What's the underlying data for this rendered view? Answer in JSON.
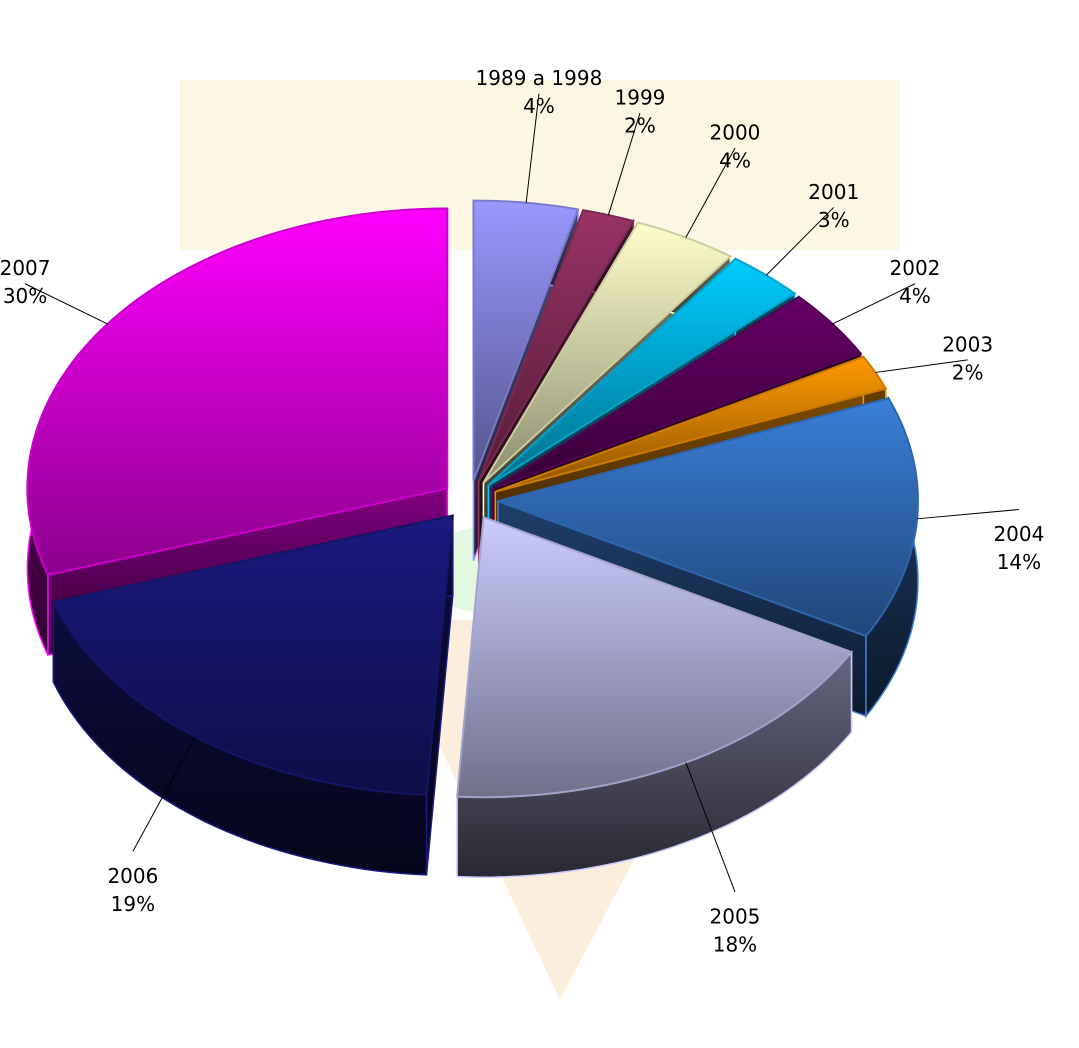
{
  "chart_data": {
    "type": "pie3d",
    "categories": [
      "1989 a 1998",
      "1999",
      "2000",
      "2001",
      "2002",
      "2003",
      "2004",
      "2005",
      "2006",
      "2007"
    ],
    "values": [
      4,
      2,
      4,
      3,
      4,
      2,
      14,
      18,
      19,
      30
    ],
    "value_labels": [
      "4%",
      "2%",
      "4%",
      "3%",
      "4%",
      "2%",
      "14%",
      "18%",
      "19%",
      "30%"
    ],
    "colors": [
      "#9999ff",
      "#993366",
      "#ffffcc",
      "#00ccff",
      "#660066",
      "#ff9900",
      "#3a7fd8",
      "#ccccff",
      "#1a1a80",
      "#ff00ff"
    ]
  }
}
